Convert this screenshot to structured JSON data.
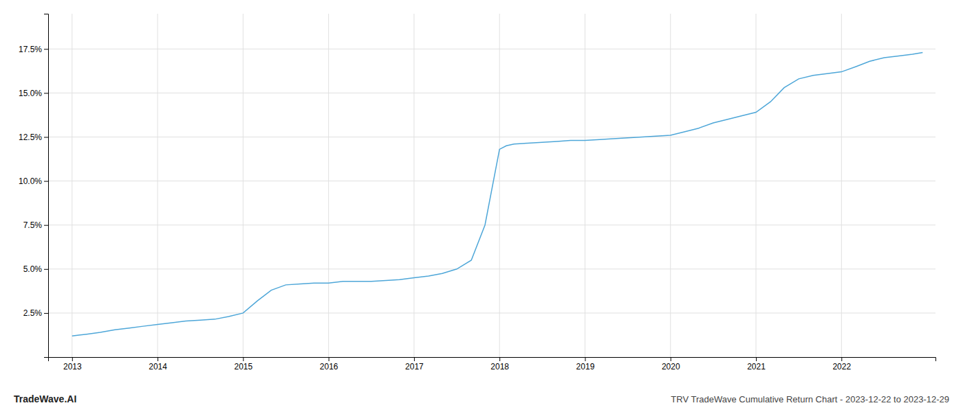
{
  "chart_data": {
    "type": "line",
    "title": "TRV TradeWave Cumulative Return Chart - 2023-12-22 to 2023-12-29",
    "annotations": [
      "TradeWave.AI"
    ],
    "color": "#4da6d8",
    "grid": true,
    "x": [
      2013.0,
      2013.08,
      2013.17,
      2013.33,
      2013.5,
      2013.67,
      2013.83,
      2014.0,
      2014.17,
      2014.33,
      2014.5,
      2014.67,
      2014.83,
      2015.0,
      2015.17,
      2015.33,
      2015.5,
      2015.67,
      2015.83,
      2016.0,
      2016.17,
      2016.33,
      2016.5,
      2016.67,
      2016.83,
      2017.0,
      2017.17,
      2017.33,
      2017.5,
      2017.67,
      2017.83,
      2018.0,
      2018.08,
      2018.17,
      2018.33,
      2018.5,
      2018.67,
      2018.83,
      2019.0,
      2019.17,
      2019.33,
      2019.5,
      2019.67,
      2019.83,
      2020.0,
      2020.17,
      2020.33,
      2020.5,
      2020.67,
      2020.83,
      2021.0,
      2021.17,
      2021.33,
      2021.5,
      2021.67,
      2021.83,
      2022.0,
      2022.17,
      2022.33,
      2022.5,
      2022.67,
      2022.83,
      2022.95
    ],
    "values": [
      1.2,
      1.25,
      1.3,
      1.4,
      1.55,
      1.65,
      1.75,
      1.85,
      1.95,
      2.05,
      2.1,
      2.15,
      2.3,
      2.5,
      3.2,
      3.8,
      4.1,
      4.15,
      4.2,
      4.2,
      4.3,
      4.3,
      4.3,
      4.35,
      4.4,
      4.5,
      4.6,
      4.75,
      5.0,
      5.5,
      7.5,
      11.8,
      12.0,
      12.1,
      12.15,
      12.2,
      12.25,
      12.3,
      12.3,
      12.35,
      12.4,
      12.45,
      12.5,
      12.55,
      12.6,
      12.8,
      13.0,
      13.3,
      13.5,
      13.7,
      13.9,
      14.5,
      15.3,
      15.8,
      16.0,
      16.1,
      16.2,
      16.5,
      16.8,
      17.0,
      17.1,
      17.2,
      17.3
    ],
    "xlim": [
      2012.72,
      2023.1
    ],
    "ylim": [
      0.0,
      19.5
    ],
    "xticks": [
      2013,
      2014,
      2015,
      2016,
      2017,
      2018,
      2019,
      2020,
      2021,
      2022
    ],
    "yticks": [
      {
        "value": 2.5,
        "label": "2.5%"
      },
      {
        "value": 5.0,
        "label": "5.0%"
      },
      {
        "value": 7.5,
        "label": "7.5%"
      },
      {
        "value": 10.0,
        "label": "10.0%"
      },
      {
        "value": 12.5,
        "label": "12.5%"
      },
      {
        "value": 15.0,
        "label": "15.0%"
      },
      {
        "value": 17.5,
        "label": "17.5%"
      }
    ]
  }
}
